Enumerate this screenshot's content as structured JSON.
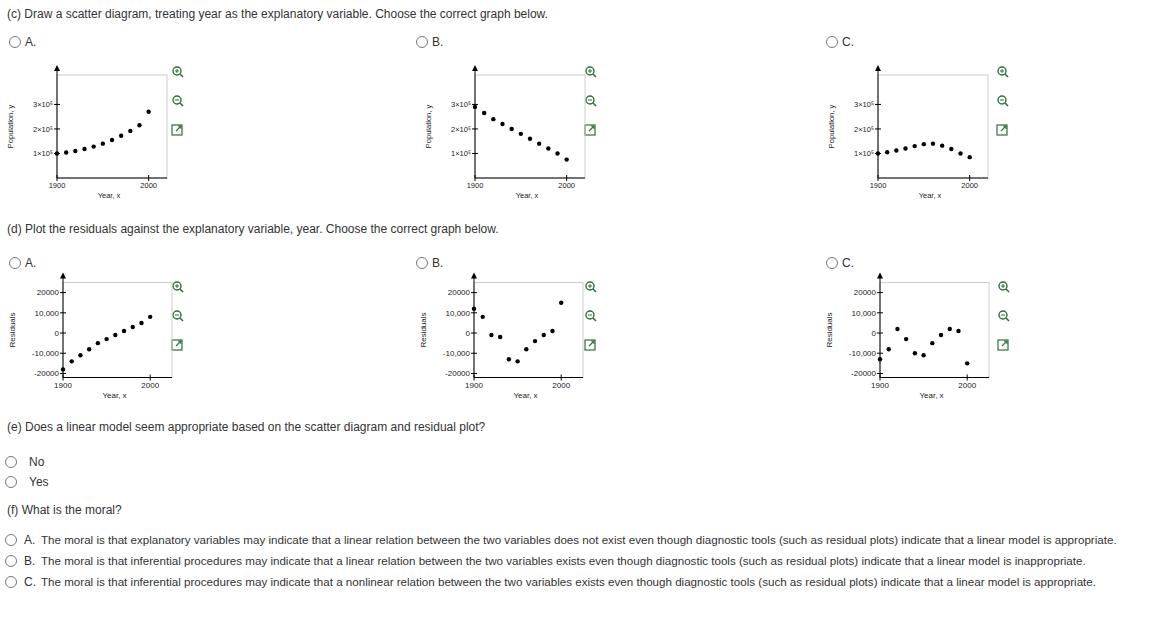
{
  "questions": [
    {
      "prompt": "(c) Draw a scatter diagram, treating year as the explanatory variable. Choose the correct graph below.",
      "options": [
        {
          "letter": "A."
        },
        {
          "letter": "B."
        },
        {
          "letter": "C."
        }
      ]
    },
    {
      "prompt": "(d) Plot the residuals against the explanatory variable, year. Choose the correct graph below.",
      "options": [
        {
          "letter": "A."
        },
        {
          "letter": "B."
        },
        {
          "letter": "C."
        }
      ]
    },
    {
      "prompt": "(e) Does a linear model seem appropriate based on the scatter diagram and residual plot?",
      "options": [
        {
          "text": "No"
        },
        {
          "text": "Yes"
        }
      ]
    },
    {
      "prompt": "(f) What is the moral?",
      "options": [
        {
          "letter": "A.",
          "text": "The moral is that explanatory variables may indicate that a linear relation between the two variables does not exist even though diagnostic tools (such as residual plots) indicate that a linear model is appropriate."
        },
        {
          "letter": "B.",
          "text": "The moral is that inferential procedures may indicate that a linear relation between the two variables exists even though diagnostic tools (such as residual plots) indicate that a linear model is inappropriate."
        },
        {
          "letter": "C.",
          "text": "The moral is that inferential procedures may indicate that a nonlinear relation between the two variables exists even though diagnostic tools (such as residual plots) indicate that a linear model is appropriate."
        }
      ]
    }
  ],
  "chart_data": [
    {
      "type": "scatter",
      "x_label": "Year, x",
      "y_label": "Population, y",
      "x": [
        1900,
        1910,
        1920,
        1930,
        1940,
        1950,
        1960,
        1970,
        1980,
        1990,
        2000
      ],
      "values": [
        100000,
        104000,
        110000,
        118000,
        128000,
        140000,
        155000,
        172000,
        192000,
        215000,
        270000
      ],
      "xlim": [
        1900,
        2020
      ],
      "ylim": [
        0,
        420000
      ],
      "xticks": [
        1900,
        2000
      ],
      "yticks": [
        {
          "value": 100000,
          "label": "1×10⁵"
        },
        {
          "value": 200000,
          "label": "2×10⁵"
        },
        {
          "value": 300000,
          "label": "3×10⁵"
        }
      ]
    },
    {
      "type": "scatter",
      "x_label": "Year, x",
      "y_label": "Population, y",
      "x": [
        1900,
        1910,
        1920,
        1930,
        1940,
        1950,
        1960,
        1970,
        1980,
        1990,
        2000
      ],
      "values": [
        290000,
        265000,
        240000,
        220000,
        200000,
        180000,
        160000,
        140000,
        120000,
        100000,
        75000
      ],
      "xlim": [
        1900,
        2020
      ],
      "ylim": [
        0,
        420000
      ],
      "xticks": [
        1900,
        2000
      ],
      "yticks": [
        {
          "value": 100000,
          "label": "1×10⁵"
        },
        {
          "value": 200000,
          "label": "2×10⁵"
        },
        {
          "value": 300000,
          "label": "3×10⁵"
        }
      ]
    },
    {
      "type": "scatter",
      "x_label": "Year, x",
      "y_label": "Population, y",
      "x": [
        1900,
        1910,
        1920,
        1930,
        1940,
        1950,
        1960,
        1970,
        1980,
        1990,
        2000
      ],
      "values": [
        100000,
        105000,
        112000,
        120000,
        130000,
        138000,
        140000,
        132000,
        118000,
        100000,
        85000
      ],
      "xlim": [
        1900,
        2020
      ],
      "ylim": [
        0,
        420000
      ],
      "xticks": [
        1900,
        2000
      ],
      "yticks": [
        {
          "value": 100000,
          "label": "1×10⁵"
        },
        {
          "value": 200000,
          "label": "2×10⁵"
        },
        {
          "value": 300000,
          "label": "3×10⁵"
        }
      ]
    },
    {
      "type": "scatter",
      "x_label": "Year, x",
      "y_label": "Residuals",
      "x": [
        1900,
        1910,
        1920,
        1930,
        1940,
        1950,
        1960,
        1970,
        1980,
        1990,
        2000
      ],
      "values": [
        -18000,
        -14000,
        -11000,
        -8000,
        -5000,
        -3000,
        -1000,
        1000,
        3000,
        5000,
        8000
      ],
      "xlim": [
        1900,
        2025
      ],
      "ylim": [
        -22000,
        25000
      ],
      "xticks": [
        1900,
        2000
      ],
      "yticks": [
        {
          "value": -20000,
          "label": "-20000"
        },
        {
          "value": -10000,
          "label": "-10,000"
        },
        0,
        {
          "value": 10000,
          "label": "10,000"
        },
        20000
      ]
    },
    {
      "type": "scatter",
      "x_label": "Year, x",
      "y_label": "Residuals",
      "x": [
        1900,
        1910,
        1920,
        1930,
        1940,
        1950,
        1960,
        1970,
        1980,
        1990,
        2000
      ],
      "values": [
        12000,
        8000,
        -1000,
        -2000,
        -13000,
        -14000,
        -8000,
        -4000,
        -1000,
        1000,
        15000
      ],
      "xlim": [
        1900,
        2025
      ],
      "ylim": [
        -22000,
        25000
      ],
      "xticks": [
        1900,
        2000
      ],
      "yticks": [
        {
          "value": -20000,
          "label": "-20000"
        },
        {
          "value": -10000,
          "label": "-10,000"
        },
        0,
        {
          "value": 10000,
          "label": "10,000"
        },
        20000
      ]
    },
    {
      "type": "scatter",
      "x_label": "Year, x",
      "y_label": "Residuals",
      "x": [
        1900,
        1910,
        1920,
        1930,
        1940,
        1950,
        1960,
        1970,
        1980,
        1990,
        2000
      ],
      "values": [
        -13000,
        -8000,
        2000,
        -3000,
        -10000,
        -11000,
        -5000,
        -1000,
        2000,
        1000,
        -15000
      ],
      "xlim": [
        1900,
        2025
      ],
      "ylim": [
        -22000,
        25000
      ],
      "xticks": [
        1900,
        2000
      ],
      "yticks": [
        {
          "value": -20000,
          "label": "-20000"
        },
        {
          "value": -10000,
          "label": "-10,000"
        },
        0,
        {
          "value": 10000,
          "label": "10,000"
        },
        20000
      ]
    }
  ]
}
